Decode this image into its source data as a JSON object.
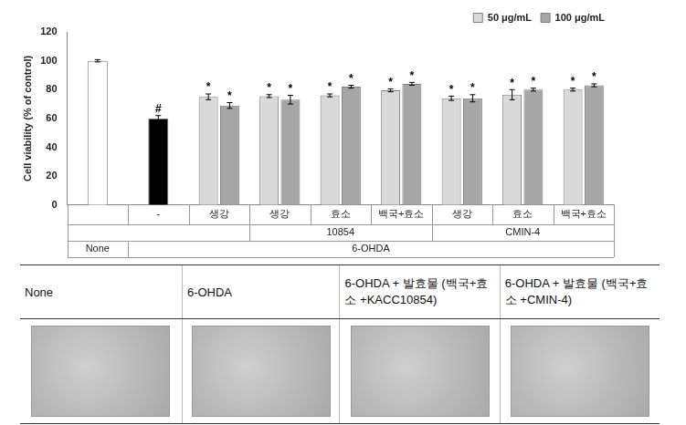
{
  "chart_data": {
    "type": "bar",
    "y_label": "Cell viability (% of control)",
    "categories": [
      null,
      "-",
      "생강",
      "생강",
      "효소",
      "백국+효소",
      "생강",
      "효소",
      "백국+효소"
    ],
    "category_groups": [
      [
        {
          "label": null,
          "span": 3
        },
        {
          "label": "10854",
          "span": 3
        },
        {
          "label": "CMIN-4",
          "span": 3
        }
      ],
      [
        {
          "label": "None",
          "span": 1
        },
        {
          "label": "6-OHDA",
          "span": 8
        }
      ]
    ],
    "series": [
      {
        "values": [
          100,
          60,
          null,
          null,
          null,
          null,
          null,
          null,
          null
        ],
        "errors": [
          0.8,
          2,
          null,
          null,
          null,
          null,
          null,
          null,
          null
        ],
        "colors": [
          "#ffffff",
          "#000000",
          null,
          null,
          null,
          null,
          null,
          null,
          null
        ],
        "significance": [
          null,
          "#",
          null,
          null,
          null,
          null,
          null,
          null,
          null
        ]
      },
      {
        "name": "50 μg/mL",
        "color": "#d9d9d9",
        "values": [
          null,
          null,
          75,
          75.5,
          76,
          79.5,
          74,
          76.5,
          80
        ],
        "errors": [
          null,
          null,
          2,
          1,
          1,
          1,
          1.5,
          3.5,
          1
        ],
        "significance": [
          null,
          null,
          "*",
          "*",
          "*",
          "*",
          "*",
          "*",
          "*"
        ]
      },
      {
        "name": "100 μg/mL",
        "color": "#a6a6a6",
        "values": [
          null,
          null,
          69,
          73,
          82,
          84,
          74,
          80,
          83
        ],
        "errors": [
          null,
          null,
          2,
          3,
          1,
          1,
          2.5,
          1,
          1
        ],
        "significance": [
          null,
          null,
          "*",
          "*",
          "*",
          "*",
          "*",
          "*",
          "*"
        ]
      }
    ],
    "ylim": [
      0,
      120
    ],
    "yticks": [
      0,
      20,
      40,
      60,
      80,
      100,
      120
    ],
    "grid": false,
    "legend": "top-right"
  },
  "table": {
    "header": [
      "None",
      "6-OHDA",
      "6-OHDA + 발효물 (백국+효소 +KACC10854)",
      "6-OHDA + 발효물 (백국+효소 +CMIN-4)"
    ]
  }
}
